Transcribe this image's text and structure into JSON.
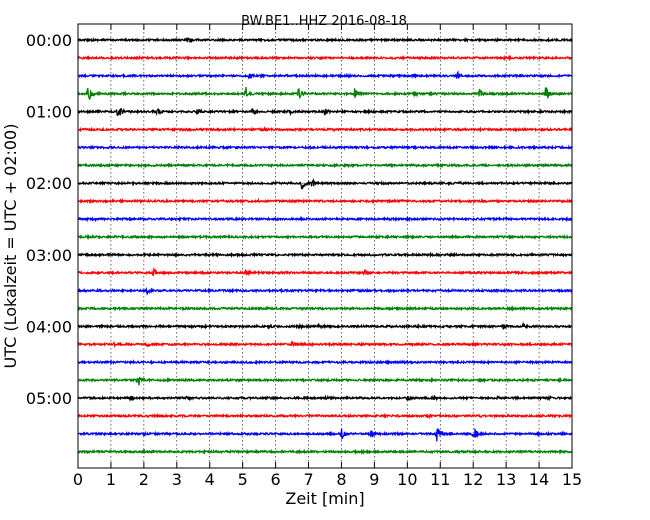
{
  "chart_data": {
    "type": "line",
    "title": "BW.BE1..HHZ 2016-08-18",
    "xlabel": "Zeit  [min]",
    "ylabel": "UTC (Lokalzeit = UTC + 02:00)",
    "xlim": [
      0,
      15
    ],
    "xticks": [
      "0",
      "1",
      "2",
      "3",
      "4",
      "5",
      "6",
      "7",
      "8",
      "9",
      "10",
      "11",
      "12",
      "13",
      "14",
      "15"
    ],
    "yticks": [
      {
        "row": 0,
        "label": "00:00"
      },
      {
        "row": 4,
        "label": "01:00"
      },
      {
        "row": 8,
        "label": "02:00"
      },
      {
        "row": 12,
        "label": "03:00"
      },
      {
        "row": 16,
        "label": "04:00"
      },
      {
        "row": 20,
        "label": "05:00"
      }
    ],
    "grid": true,
    "row_colors": [
      "#000000",
      "#ff0000",
      "#0000ff",
      "#008000"
    ],
    "traces": [
      {
        "start": "00:00",
        "events": [
          [
            3.3,
            1.4
          ]
        ]
      },
      {
        "start": "00:15",
        "events": []
      },
      {
        "start": "00:30",
        "events": [
          [
            2.2,
            0.8
          ],
          [
            5.2,
            1.6
          ],
          [
            11.5,
            2.0
          ]
        ]
      },
      {
        "start": "00:45",
        "events": [
          [
            0.3,
            3.5
          ],
          [
            5.1,
            3.0
          ],
          [
            6.7,
            2.5
          ],
          [
            8.4,
            2.5
          ],
          [
            10.2,
            1.5
          ],
          [
            12.2,
            2.2
          ],
          [
            14.2,
            3.0
          ]
        ]
      },
      {
        "start": "01:00",
        "events": [
          [
            1.2,
            3.5
          ],
          [
            2.4,
            1.6
          ],
          [
            3.6,
            1.6
          ],
          [
            4.7,
            1.2
          ],
          [
            5.3,
            1.8
          ],
          [
            6.4,
            1.6
          ],
          [
            7.5,
            1.6
          ]
        ]
      },
      {
        "start": "01:15",
        "events": [
          [
            5.6,
            1.0
          ]
        ]
      },
      {
        "start": "01:30",
        "events": [
          [
            13.1,
            0.9
          ]
        ]
      },
      {
        "start": "01:45",
        "events": []
      },
      {
        "start": "02:00",
        "events": [
          [
            6.8,
            2.8
          ],
          [
            7.1,
            2.2
          ],
          [
            11.6,
            0.8
          ]
        ]
      },
      {
        "start": "02:15",
        "events": [
          [
            9.8,
            0.8
          ],
          [
            10.8,
            0.6
          ]
        ]
      },
      {
        "start": "02:30",
        "events": [
          [
            6.0,
            0.9
          ]
        ]
      },
      {
        "start": "02:45",
        "events": [
          [
            9.5,
            0.6
          ]
        ]
      },
      {
        "start": "03:00",
        "events": [
          [
            4.2,
            0.7
          ]
        ]
      },
      {
        "start": "03:15",
        "events": [
          [
            2.3,
            1.6
          ],
          [
            5.1,
            1.8
          ],
          [
            8.7,
            1.6
          ]
        ]
      },
      {
        "start": "03:30",
        "events": [
          [
            2.1,
            1.4
          ],
          [
            10.0,
            0.7
          ]
        ]
      },
      {
        "start": "03:45",
        "events": [
          [
            9.0,
            0.7
          ]
        ]
      },
      {
        "start": "04:00",
        "events": [
          [
            5.8,
            1.2
          ],
          [
            6.7,
            1.3
          ],
          [
            7.3,
            1.1
          ],
          [
            12.9,
            1.6
          ],
          [
            13.5,
            1.2
          ]
        ]
      },
      {
        "start": "04:15",
        "events": [
          [
            1.1,
            1.0
          ],
          [
            2.1,
            1.0
          ],
          [
            6.5,
            1.6
          ]
        ]
      },
      {
        "start": "04:30",
        "events": [
          [
            9.2,
            0.6
          ]
        ]
      },
      {
        "start": "04:45",
        "events": [
          [
            1.8,
            3.5
          ],
          [
            4.9,
            0.8
          ]
        ]
      },
      {
        "start": "05:00",
        "events": [
          [
            1.6,
            1.2
          ],
          [
            3.3,
            1.4
          ],
          [
            7.5,
            1.1
          ],
          [
            10.0,
            1.4
          ],
          [
            10.8,
            1.0
          ],
          [
            12.7,
            1.0
          ],
          [
            14.3,
            1.0
          ]
        ]
      },
      {
        "start": "05:15",
        "events": [
          [
            10.6,
            1.2
          ],
          [
            12.2,
            0.7
          ]
        ]
      },
      {
        "start": "05:30",
        "events": [
          [
            2.0,
            0.8
          ],
          [
            3.5,
            0.8
          ],
          [
            8.0,
            2.5
          ],
          [
            8.9,
            1.8
          ],
          [
            10.9,
            3.5
          ],
          [
            12.0,
            3.0
          ]
        ]
      },
      {
        "start": "05:45",
        "events": []
      }
    ]
  }
}
